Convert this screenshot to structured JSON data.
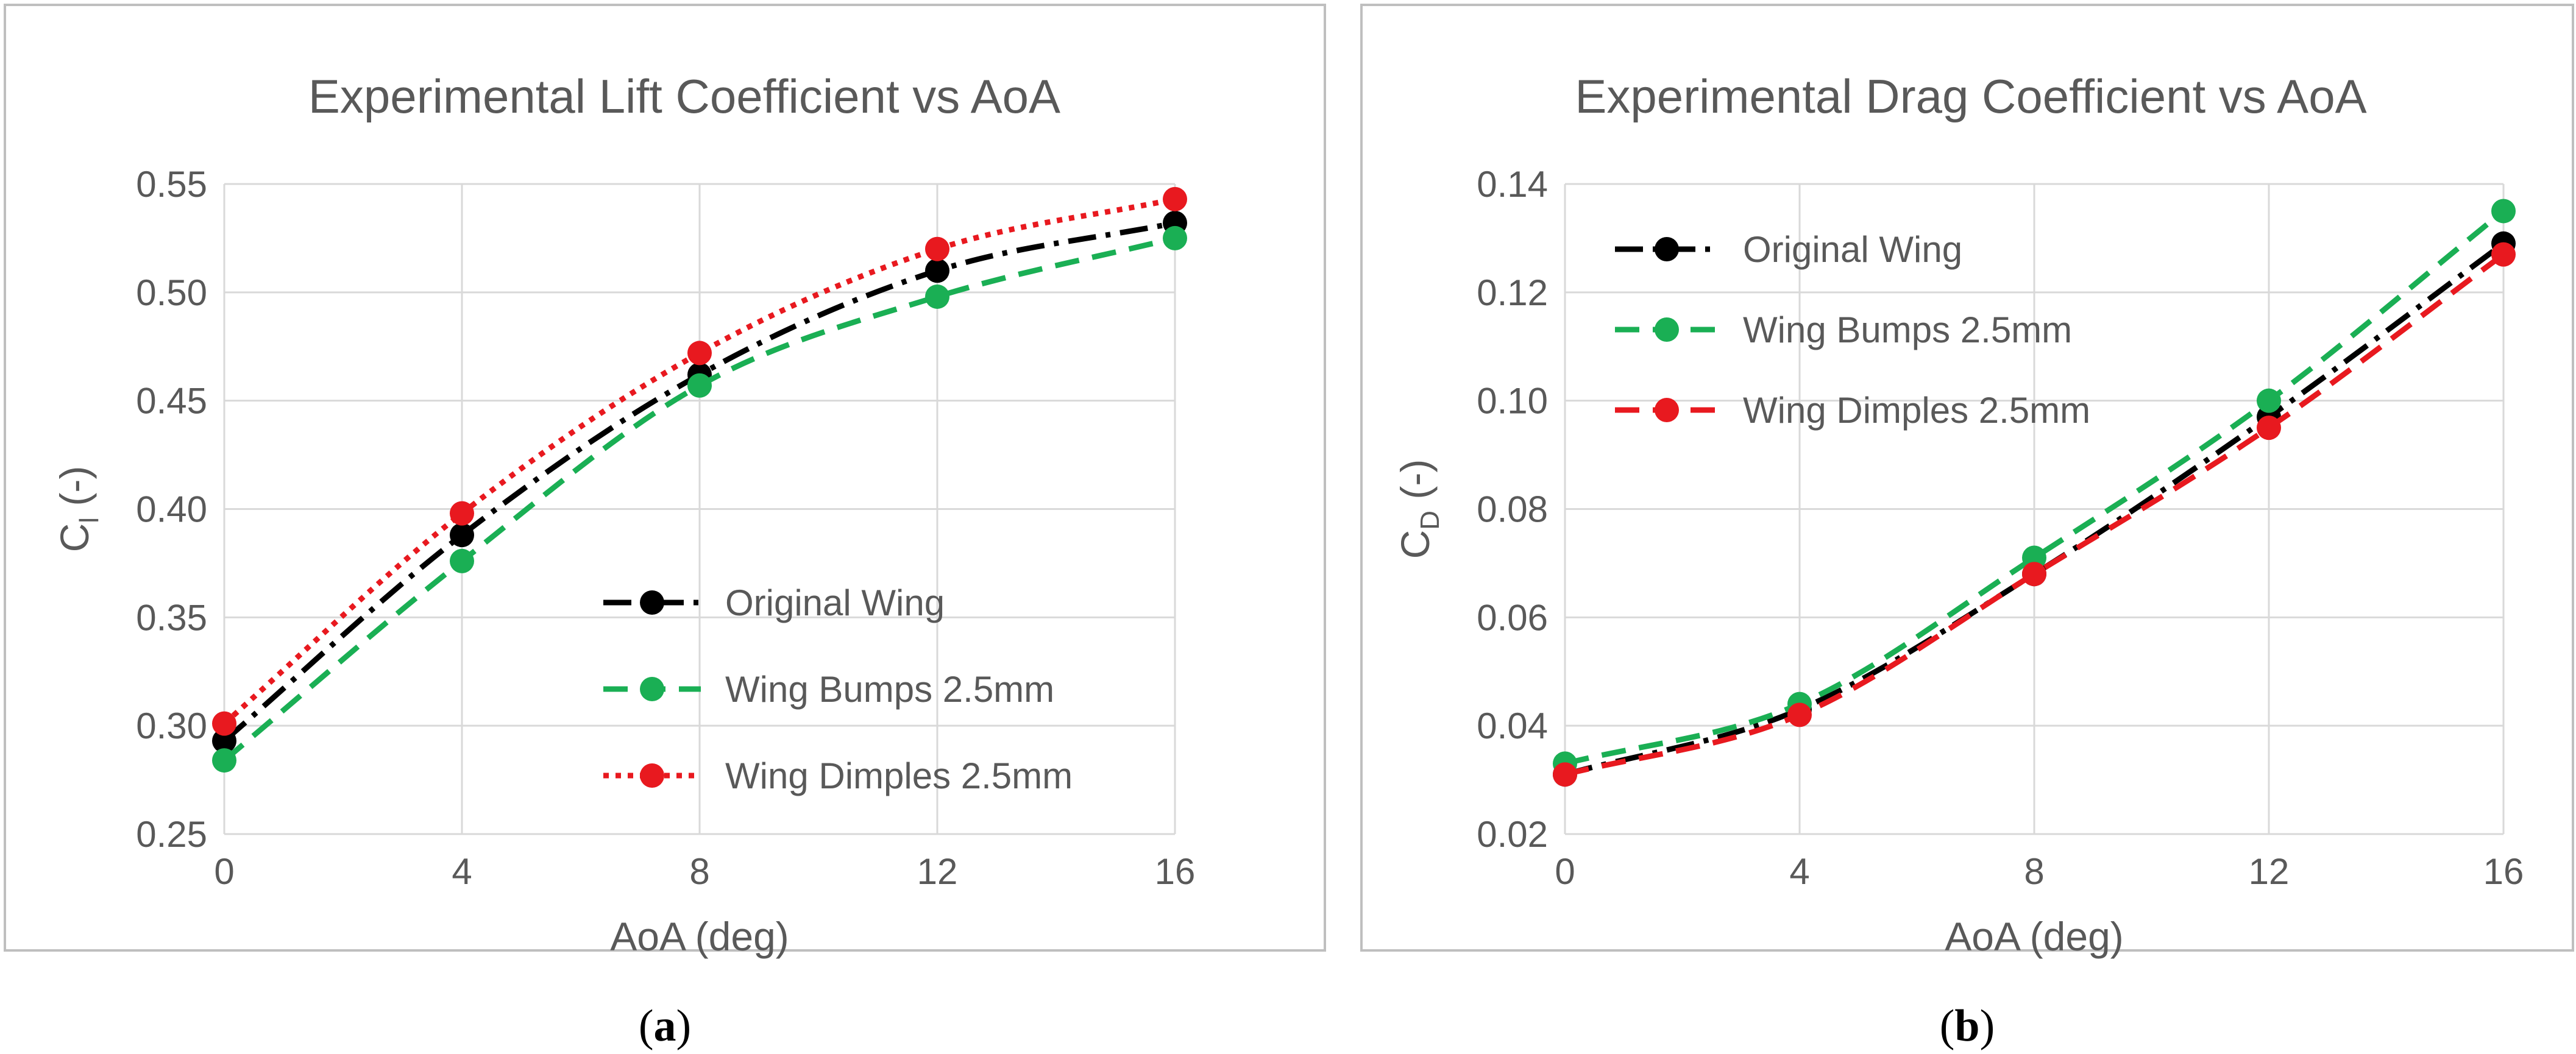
{
  "chart_data": [
    {
      "type": "line",
      "title": "Experimental Lift Coefficient vs AoA",
      "xlabel": "AoA (deg)",
      "ylabel": {
        "main": "C",
        "sub": "l",
        "suffix": " (-)"
      },
      "x": [
        0,
        4,
        8,
        12,
        16
      ],
      "xlim": [
        0,
        16
      ],
      "ylim": [
        0.25,
        0.55
      ],
      "xticks": [
        "0",
        "4",
        "8",
        "12",
        "16"
      ],
      "yticks": [
        "0.25",
        "0.30",
        "0.35",
        "0.40",
        "0.45",
        "0.50",
        "0.55"
      ],
      "grid": true,
      "legend_position": "bottom-right",
      "caption": {
        "open": "(",
        "letter": "a",
        "close": ")"
      },
      "series": [
        {
          "name": "Original Wing",
          "values": [
            0.293,
            0.388,
            0.462,
            0.51,
            0.532
          ],
          "color": "#000000",
          "dash": "dashdot"
        },
        {
          "name": "Wing Bumps 2.5mm",
          "values": [
            0.284,
            0.376,
            0.457,
            0.498,
            0.525
          ],
          "color": "#1aaf54",
          "dash": "dash"
        },
        {
          "name": "Wing Dimples 2.5mm",
          "values": [
            0.301,
            0.398,
            0.472,
            0.52,
            0.543
          ],
          "color": "#e8191f",
          "dash": "dot"
        }
      ]
    },
    {
      "type": "line",
      "title": "Experimental Drag Coefficient vs AoA",
      "xlabel": "AoA (deg)",
      "ylabel": {
        "main": "C",
        "sub": "D",
        "suffix": " (-)"
      },
      "x": [
        0,
        4,
        8,
        12,
        16
      ],
      "xlim": [
        0,
        16
      ],
      "ylim": [
        0.02,
        0.14
      ],
      "xticks": [
        "0",
        "4",
        "8",
        "12",
        "16"
      ],
      "yticks": [
        "0.02",
        "0.04",
        "0.06",
        "0.08",
        "0.10",
        "0.12",
        "0.14"
      ],
      "grid": true,
      "legend_position": "top-left",
      "caption": {
        "open": "(",
        "letter": "b",
        "close": ")"
      },
      "series": [
        {
          "name": "Original Wing",
          "values": [
            0.031,
            0.043,
            0.068,
            0.097,
            0.129
          ],
          "color": "#000000",
          "dash": "dashdot"
        },
        {
          "name": "Wing Bumps 2.5mm",
          "values": [
            0.033,
            0.044,
            0.071,
            0.1,
            0.135
          ],
          "color": "#1aaf54",
          "dash": "dash"
        },
        {
          "name": "Wing Dimples 2.5mm",
          "values": [
            0.031,
            0.042,
            0.068,
            0.095,
            0.127
          ],
          "color": "#e8191f",
          "dash": "dash"
        }
      ]
    }
  ]
}
